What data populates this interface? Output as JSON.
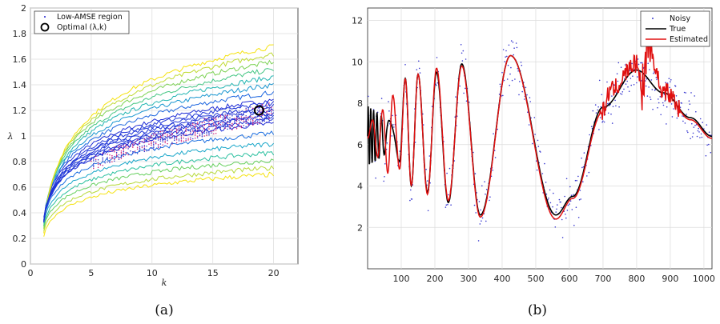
{
  "chart_data": [
    {
      "type": "line",
      "panel_caption": "(a)",
      "xlabel": "k",
      "ylabel": "λ",
      "xlim": [
        0,
        22
      ],
      "ylim": [
        0,
        2
      ],
      "xticks": [
        "0",
        "5",
        "10",
        "15",
        "20"
      ],
      "yticks": [
        "0",
        "0.2",
        "0.4",
        "0.6",
        "0.8",
        "1",
        "1.2",
        "1.4",
        "1.6",
        "1.8",
        "2"
      ],
      "grid": true,
      "legend_position": "top-left",
      "legend": [
        "Low-AMSE region",
        "Optimal (λ,k)"
      ],
      "contour_colormap": [
        "#1f2dd6",
        "#1d6fe0",
        "#18a6c9",
        "#2cc0a0",
        "#66cf5e",
        "#b7d93a",
        "#f5e20f"
      ],
      "contour_levels": [
        {
          "upper": true,
          "lam_at_k20": 1.28,
          "lam_at_k1": 0.35
        },
        {
          "upper": true,
          "lam_at_k20": 1.34,
          "lam_at_k1": 0.34
        },
        {
          "upper": true,
          "lam_at_k20": 1.4,
          "lam_at_k1": 0.33
        },
        {
          "upper": true,
          "lam_at_k20": 1.46,
          "lam_at_k1": 0.32
        },
        {
          "upper": true,
          "lam_at_k20": 1.52,
          "lam_at_k1": 0.3
        },
        {
          "upper": true,
          "lam_at_k20": 1.58,
          "lam_at_k1": 0.29
        },
        {
          "upper": true,
          "lam_at_k20": 1.64,
          "lam_at_k1": 0.27
        },
        {
          "upper": true,
          "lam_at_k20": 1.7,
          "lam_at_k1": 0.24
        },
        {
          "upper": false,
          "lam_at_k20": 1.1,
          "lam_at_k1": 0.36
        },
        {
          "upper": false,
          "lam_at_k20": 1.02,
          "lam_at_k1": 0.34
        },
        {
          "upper": false,
          "lam_at_k20": 0.94,
          "lam_at_k1": 0.32
        },
        {
          "upper": false,
          "lam_at_k20": 0.87,
          "lam_at_k1": 0.3
        },
        {
          "upper": false,
          "lam_at_k20": 0.81,
          "lam_at_k1": 0.28
        },
        {
          "upper": false,
          "lam_at_k20": 0.75,
          "lam_at_k1": 0.25
        },
        {
          "upper": false,
          "lam_at_k20": 0.7,
          "lam_at_k1": 0.22
        }
      ],
      "low_amse_region": {
        "k_range": [
          5,
          20
        ],
        "lam_band_at_k20": [
          1.12,
          1.27
        ],
        "lam_band_at_k5": [
          0.72,
          0.82
        ]
      },
      "optimal_point": {
        "k": 18.8,
        "lambda": 1.2
      }
    },
    {
      "type": "line",
      "panel_caption": "(b)",
      "xlim": [
        0,
        1024
      ],
      "ylim": [
        0,
        12.6
      ],
      "xticks": [
        "100",
        "200",
        "300",
        "400",
        "500",
        "600",
        "700",
        "800",
        "900",
        "1000"
      ],
      "yticks": [
        "2",
        "4",
        "6",
        "8",
        "10",
        "12"
      ],
      "grid": true,
      "legend_position": "top-right",
      "series": [
        {
          "name": "Noisy",
          "style": "dots",
          "color": "#3a3ad0"
        },
        {
          "name": "True",
          "style": "line",
          "color": "#000000"
        },
        {
          "name": "Estimated",
          "style": "line",
          "color": "#e01010"
        }
      ],
      "true_curve_points": [
        [
          0,
          6.4
        ],
        [
          20,
          6.6
        ],
        [
          60,
          7.6
        ],
        [
          95,
          5.2
        ],
        [
          112,
          9.2
        ],
        [
          130,
          4.0
        ],
        [
          150,
          9.4
        ],
        [
          178,
          3.7
        ],
        [
          205,
          9.5
        ],
        [
          240,
          3.2
        ],
        [
          280,
          9.9
        ],
        [
          335,
          2.6
        ],
        [
          425,
          10.3
        ],
        [
          560,
          2.6
        ],
        [
          610,
          3.5
        ],
        [
          700,
          7.8
        ],
        [
          800,
          9.6
        ],
        [
          880,
          8.5
        ],
        [
          960,
          7.3
        ],
        [
          1024,
          6.4
        ]
      ],
      "estimated_curve_points": [
        [
          0,
          6.3
        ],
        [
          15,
          7.2
        ],
        [
          30,
          5.4
        ],
        [
          45,
          7.7
        ],
        [
          60,
          4.6
        ],
        [
          75,
          8.4
        ],
        [
          95,
          4.8
        ],
        [
          112,
          9.2
        ],
        [
          130,
          4.0
        ],
        [
          150,
          9.4
        ],
        [
          178,
          3.6
        ],
        [
          205,
          9.7
        ],
        [
          240,
          3.3
        ],
        [
          280,
          9.8
        ],
        [
          335,
          2.5
        ],
        [
          425,
          10.3
        ],
        [
          560,
          2.4
        ],
        [
          610,
          3.4
        ],
        [
          700,
          7.6
        ],
        [
          720,
          8.6
        ],
        [
          800,
          9.9
        ],
        [
          820,
          8.6
        ],
        [
          830,
          10.9
        ],
        [
          880,
          8.6
        ],
        [
          960,
          7.2
        ],
        [
          1024,
          6.3
        ]
      ]
    }
  ]
}
